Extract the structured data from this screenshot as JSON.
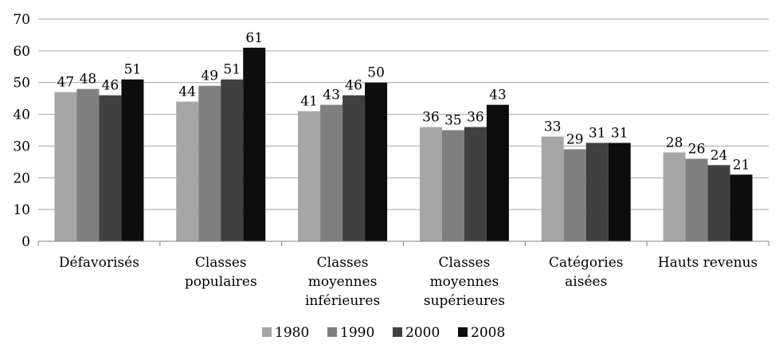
{
  "chart_data": {
    "type": "bar",
    "title": "",
    "xlabel": "",
    "ylabel": "",
    "ylim": [
      0,
      70
    ],
    "yticks": [
      0,
      10,
      20,
      30,
      40,
      50,
      60,
      70
    ],
    "grid": true,
    "legend_position": "bottom",
    "categories": [
      [
        "Défavorisés"
      ],
      [
        "Classes",
        "populaires"
      ],
      [
        "Classes",
        "moyennes",
        "inférieures"
      ],
      [
        "Classes",
        "moyennes",
        "supérieures"
      ],
      [
        "Catégories",
        "aisées"
      ],
      [
        "Hauts revenus"
      ]
    ],
    "series": [
      {
        "name": "1980",
        "color": "#a6a6a6",
        "values": [
          47,
          44,
          41,
          36,
          33,
          28
        ]
      },
      {
        "name": "1990",
        "color": "#7f7f7f",
        "values": [
          48,
          49,
          43,
          35,
          29,
          26
        ]
      },
      {
        "name": "2000",
        "color": "#404040",
        "values": [
          46,
          51,
          46,
          36,
          31,
          24
        ]
      },
      {
        "name": "2008",
        "color": "#0d0d0d",
        "values": [
          51,
          61,
          50,
          43,
          31,
          21
        ]
      }
    ]
  }
}
